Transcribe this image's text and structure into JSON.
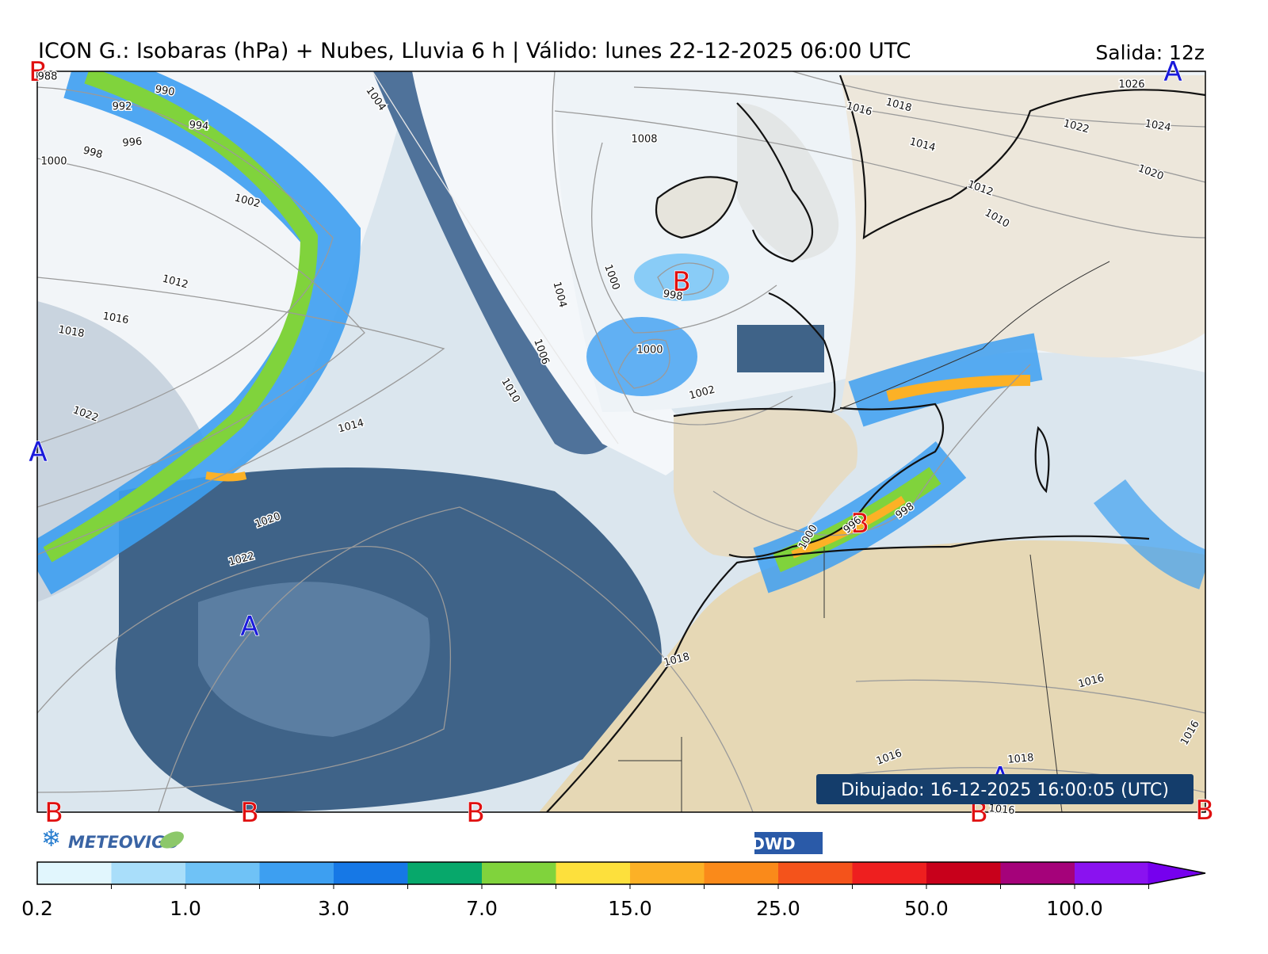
{
  "header": {
    "title": "ICON G.: Isobaras (hPa) + Nubes, Lluvia 6 h | Válido: lunes 22-12-2025 06:00 UTC",
    "run": "Salida: 12z"
  },
  "centers": [
    "B",
    "A",
    "B",
    "A",
    "A",
    "B",
    "B",
    "B",
    "B",
    "B",
    "B",
    "A"
  ],
  "isobar_labels": [
    "988",
    "990",
    "992",
    "994",
    "996",
    "998",
    "1000",
    "1002",
    "1004",
    "1012",
    "1016",
    "1018",
    "1022",
    "1014",
    "1020",
    "1022",
    "1004",
    "1006",
    "1010",
    "1008",
    "1000",
    "998",
    "1000",
    "1002",
    "1016",
    "1018",
    "1014",
    "1012",
    "1010",
    "1026",
    "1024",
    "1022",
    "1020",
    "998",
    "996",
    "1000",
    "1018",
    "1016",
    "1016",
    "1016",
    "1018",
    "1016"
  ],
  "stamp": "Dibujado: 16-12-2025 16:00:05 (UTC)",
  "logos": {
    "left": "METEOVIGO",
    "right": "DWD"
  },
  "colorbar": {
    "ticks": [
      "0.2",
      "1.0",
      "3.0",
      "7.0",
      "15.0",
      "25.0",
      "50.0",
      "100.0"
    ],
    "colors": [
      "#e1f6fd",
      "#a9defa",
      "#6fc2f6",
      "#3d9ff1",
      "#1678e6",
      "#07a86b",
      "#80d33c",
      "#fde03c",
      "#fcb126",
      "#fa8a1a",
      "#f4531b",
      "#ee1f1f",
      "#c8001b",
      "#a5027a",
      "#8a12f0",
      "#7600ee"
    ]
  }
}
